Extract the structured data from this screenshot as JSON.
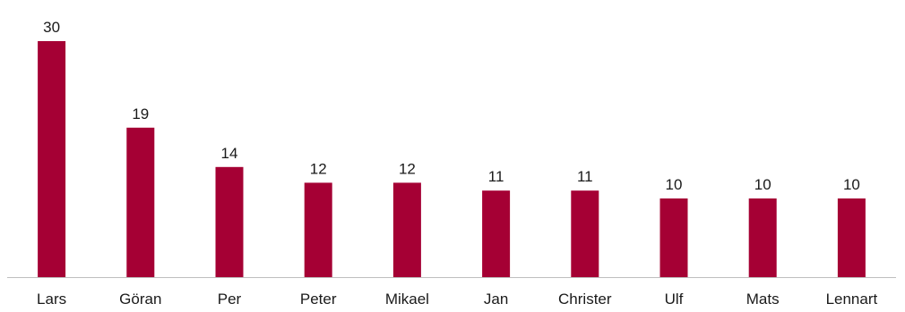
{
  "chart_data": {
    "type": "bar",
    "title": "",
    "xlabel": "",
    "ylabel": "",
    "categories": [
      "Lars",
      "Göran",
      "Per",
      "Peter",
      "Mikael",
      "Jan",
      "Christer",
      "Ulf",
      "Mats",
      "Lennart"
    ],
    "values": [
      30,
      19,
      14,
      12,
      12,
      11,
      11,
      10,
      10,
      10
    ],
    "value_labels": [
      "30",
      "19",
      "14",
      "12",
      "12",
      "11",
      "11",
      "10",
      "10",
      "10"
    ],
    "ylim": [
      0,
      30
    ],
    "grid": false,
    "legend": "none",
    "bar_color": "#a50034",
    "axis_color": "#bfbfbf",
    "text_color": "#1a1a1a"
  }
}
